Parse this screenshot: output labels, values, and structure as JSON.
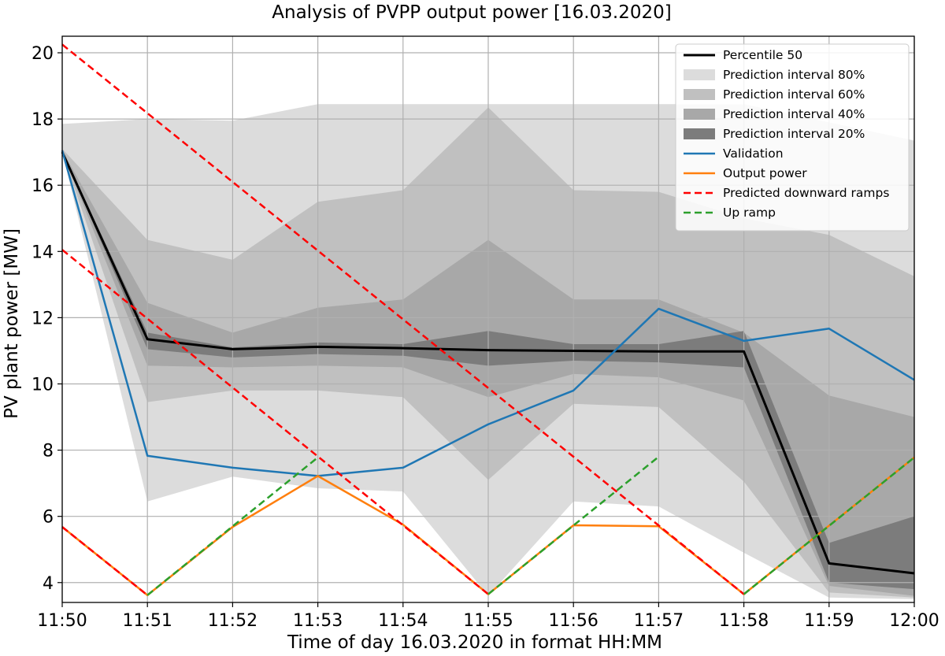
{
  "chart_data": {
    "type": "line",
    "title": "Analysis of PVPP output power [16.03.2020]",
    "xlabel": "Time of day 16.03.2020 in format HH:MM",
    "ylabel": "PV plant power [MW]",
    "categories": [
      "11:50",
      "11:51",
      "11:52",
      "11:53",
      "11:54",
      "11:55",
      "11:56",
      "11:57",
      "11:58",
      "11:59",
      "12:00"
    ],
    "xlim": [
      0,
      10
    ],
    "ylim": [
      3.4,
      20.5
    ],
    "yticks": [
      4,
      6,
      8,
      10,
      12,
      14,
      16,
      18,
      20
    ],
    "grid": true,
    "legend_position": "top-right",
    "bands": [
      {
        "name": "Prediction interval 80%",
        "color": "#dcdcdc",
        "lower": [
          17.0,
          6.45,
          7.2,
          6.85,
          6.75,
          3.6,
          6.45,
          6.3,
          4.9,
          3.55,
          3.5
        ],
        "upper": [
          17.85,
          18.0,
          17.95,
          18.45,
          18.45,
          18.45,
          18.45,
          18.45,
          18.45,
          17.9,
          17.35
        ]
      },
      {
        "name": "Prediction interval 60%",
        "color": "#c0c0c0",
        "lower": [
          17.0,
          9.45,
          9.8,
          9.8,
          9.6,
          7.1,
          9.4,
          9.3,
          7.05,
          3.7,
          3.55
        ],
        "upper": [
          17.1,
          14.35,
          13.75,
          15.5,
          15.85,
          18.35,
          15.85,
          15.8,
          15.0,
          14.5,
          13.25
        ]
      },
      {
        "name": "Prediction interval 40%",
        "color": "#a8a8a8",
        "lower": [
          17.0,
          10.55,
          10.5,
          10.55,
          10.5,
          9.6,
          10.3,
          10.2,
          9.5,
          3.9,
          3.6
        ],
        "upper": [
          17.05,
          12.45,
          11.55,
          12.3,
          12.55,
          14.35,
          12.55,
          12.55,
          11.55,
          9.65,
          9.0
        ]
      },
      {
        "name": "Prediction interval 20%",
        "color": "#7c7c7c",
        "lower": [
          17.0,
          11.05,
          10.8,
          10.9,
          10.85,
          10.55,
          10.7,
          10.65,
          10.5,
          4.0,
          3.8
        ],
        "upper": [
          17.02,
          11.55,
          11.1,
          11.25,
          11.2,
          11.6,
          11.2,
          11.2,
          11.6,
          5.2,
          6.0
        ]
      }
    ],
    "series": [
      {
        "name": "Percentile 50",
        "color": "#000000",
        "dashed": false,
        "width": 3,
        "x": [
          0,
          1,
          2,
          3,
          4,
          5,
          6,
          7,
          8,
          9,
          10
        ],
        "values": [
          17.0,
          11.35,
          11.05,
          11.12,
          11.08,
          11.02,
          11.0,
          10.98,
          10.98,
          4.58,
          4.28
        ]
      },
      {
        "name": "Validation",
        "color": "#1f77b4",
        "dashed": false,
        "width": 2.5,
        "x": [
          0,
          1,
          2,
          3,
          4,
          5,
          6,
          7,
          8,
          9,
          10
        ],
        "values": [
          17.05,
          7.83,
          7.47,
          7.22,
          7.47,
          8.78,
          9.8,
          12.27,
          11.3,
          11.67,
          10.12
        ]
      },
      {
        "name": "Output power",
        "color": "#ff7f0e",
        "dashed": false,
        "width": 2.5,
        "x": [
          0,
          1,
          2,
          3,
          4,
          5,
          6,
          7,
          8,
          9,
          10
        ],
        "values": [
          5.68,
          3.62,
          5.68,
          7.22,
          5.75,
          3.65,
          5.73,
          5.7,
          3.65,
          5.72,
          7.78
        ]
      },
      {
        "name": "Predicted downward ramps",
        "color": "#ff0000",
        "dashed": true,
        "width": 2.5,
        "segments": [
          {
            "x": [
              0,
              1
            ],
            "values": [
              5.68,
              3.62
            ]
          },
          {
            "x": [
              0,
              8
            ],
            "values": [
              20.25,
              3.65
            ]
          },
          {
            "x": [
              0,
              5
            ],
            "values": [
              14.05,
              3.65
            ]
          }
        ]
      },
      {
        "name": "Up ramp",
        "color": "#2ca02c",
        "dashed": true,
        "width": 2.5,
        "segments": [
          {
            "x": [
              1,
              3
            ],
            "values": [
              3.62,
              7.78
            ]
          },
          {
            "x": [
              5,
              7
            ],
            "values": [
              3.65,
              7.8
            ]
          },
          {
            "x": [
              8,
              10
            ],
            "values": [
              3.65,
              7.78
            ]
          }
        ]
      }
    ]
  }
}
